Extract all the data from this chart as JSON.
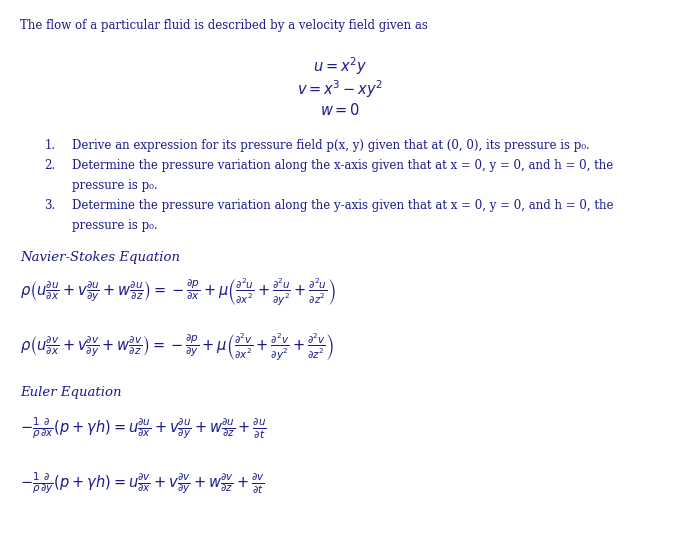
{
  "background_color": "#ffffff",
  "text_color": "#1a1a8c",
  "figsize": [
    6.81,
    5.52
  ],
  "dpi": 100,
  "intro_text": "The flow of a particular fluid is described by a velocity field given as",
  "navier_stokes_label": "Navier-Stokes Equation",
  "euler_label": "Euler Equation",
  "ns_eq1": "$\\rho\\left(u\\frac{\\partial u}{\\partial x}+v\\frac{\\partial u}{\\partial y}+w\\frac{\\partial u}{\\partial z}\\right)=-\\frac{\\partial p}{\\partial x}+\\mu\\left(\\frac{\\partial^2 u}{\\partial x^2}+\\frac{\\partial^2 u}{\\partial y^2}+\\frac{\\partial^2 u}{\\partial z^2}\\right)$",
  "ns_eq2": "$\\rho\\left(u\\frac{\\partial v}{\\partial x}+v\\frac{\\partial v}{\\partial y}+w\\frac{\\partial v}{\\partial z}\\right)=-\\frac{\\partial p}{\\partial y}+\\mu\\left(\\frac{\\partial^2 v}{\\partial x^2}+\\frac{\\partial^2 v}{\\partial y^2}+\\frac{\\partial^2 v}{\\partial z^2}\\right)$",
  "euler_eq1": "$-\\frac{1}{\\rho}\\frac{\\partial}{\\partial x}(p+\\gamma h)=u\\frac{\\partial u}{\\partial x}+v\\frac{\\partial u}{\\partial y}+w\\frac{\\partial u}{\\partial z}+\\frac{\\partial u}{\\partial t}$",
  "euler_eq2": "$-\\frac{1}{\\rho}\\frac{\\partial}{\\partial y}(p+\\gamma h)=u\\frac{\\partial v}{\\partial x}+v\\frac{\\partial v}{\\partial y}+w\\frac{\\partial v}{\\partial z}+\\frac{\\partial v}{\\partial t}$"
}
